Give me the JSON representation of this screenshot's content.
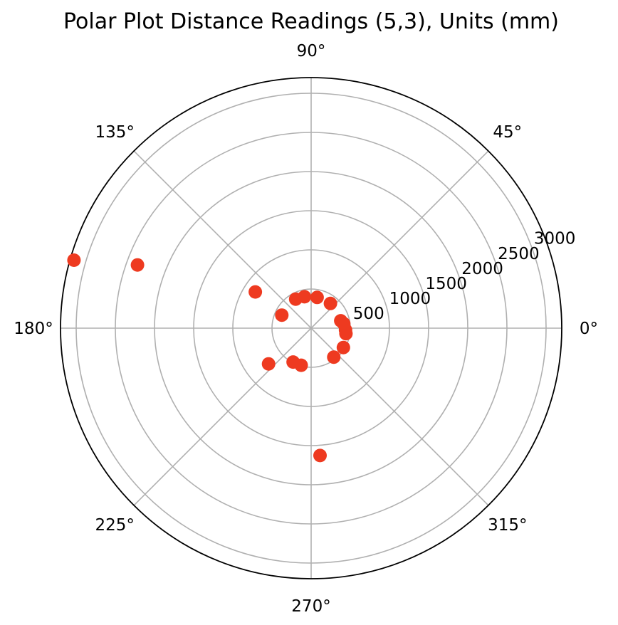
{
  "chart_data": {
    "type": "scatter",
    "projection": "polar",
    "title": "Polar Plot Distance Readings (5,3), Units (mm)",
    "angle_unit": "degrees",
    "angle_ticks": [
      "0°",
      "45°",
      "90°",
      "135°",
      "180°",
      "225°",
      "270°",
      "315°"
    ],
    "angle_tick_values": [
      0,
      45,
      90,
      135,
      180,
      225,
      270,
      315
    ],
    "radial_ticks": [
      "500",
      "1000",
      "1500",
      "2000",
      "2500",
      "3000"
    ],
    "radial_tick_values": [
      500,
      1000,
      1500,
      2000,
      2500,
      3000
    ],
    "rlim": [
      0,
      3200
    ],
    "grid": true,
    "marker_color": "#ee3a20",
    "points": [
      {
        "theta": 52,
        "r": 400
      },
      {
        "theta": 14,
        "r": 390
      },
      {
        "theta": 8,
        "r": 420
      },
      {
        "theta": -9,
        "r": 450
      },
      {
        "theta": -3,
        "r": 440
      },
      {
        "theta": -31,
        "r": 480
      },
      {
        "theta": -52,
        "r": 470
      },
      {
        "theta": -86,
        "r": 1630
      },
      {
        "theta": -105,
        "r": 490
      },
      {
        "theta": -118,
        "r": 490
      },
      {
        "theta": -140,
        "r": 710
      },
      {
        "theta": 160,
        "r": 2360
      },
      {
        "theta": 164,
        "r": 3150
      },
      {
        "theta": 147,
        "r": 850
      },
      {
        "theta": 156,
        "r": 410
      },
      {
        "theta": 118,
        "r": 420
      },
      {
        "theta": 102,
        "r": 410
      },
      {
        "theta": 79,
        "r": 400
      }
    ]
  }
}
